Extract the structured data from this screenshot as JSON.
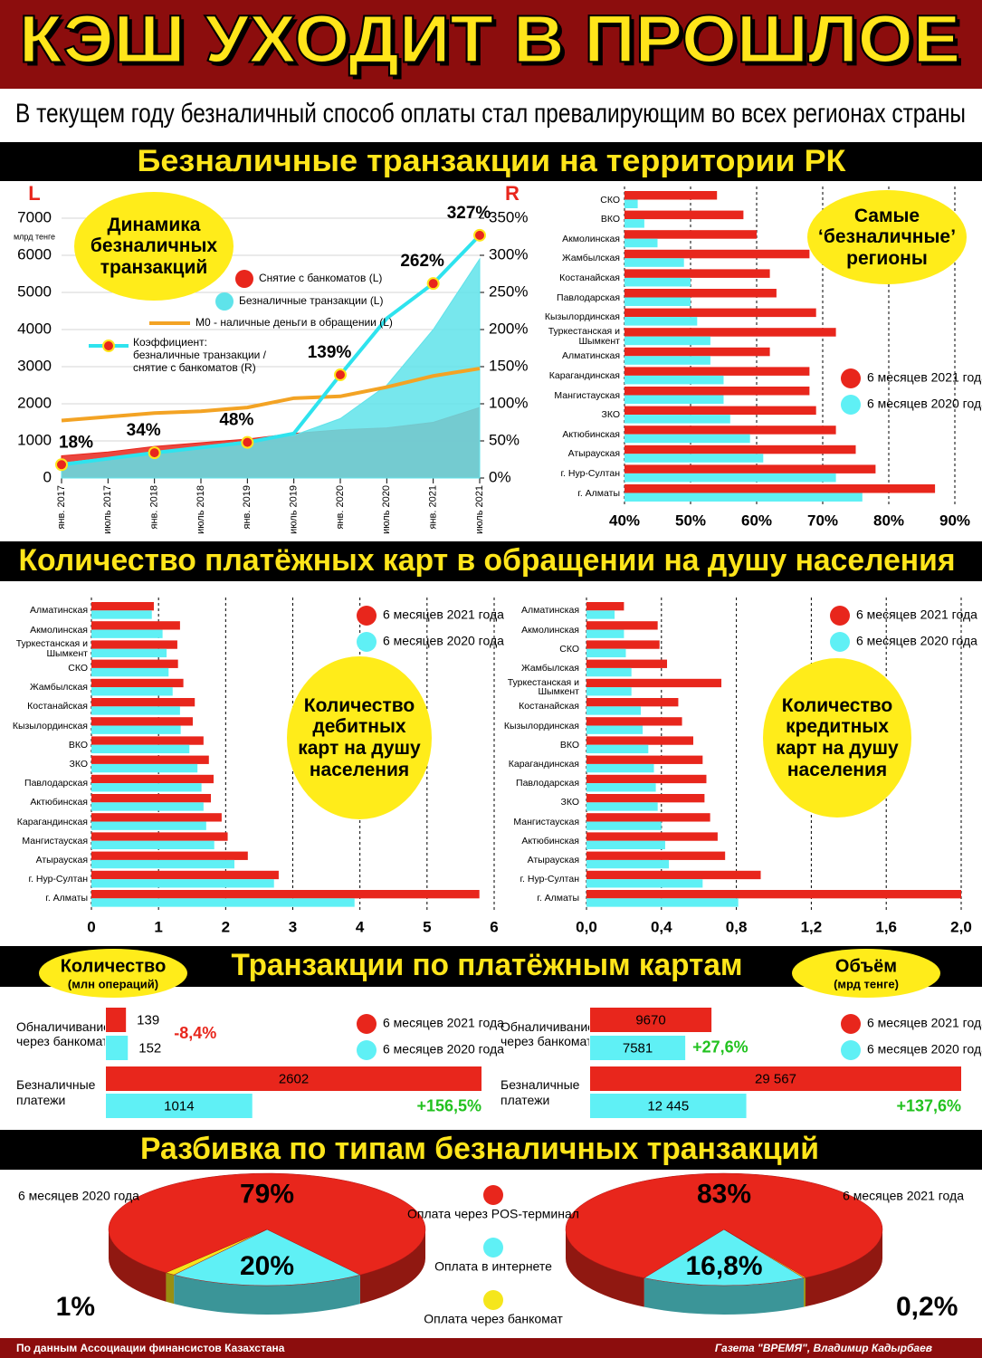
{
  "header": {
    "title": "КЭШ УХОДИТ В ПРОШЛОЕ",
    "subtitle": "В текущем году безналичный способ оплаты стал превалирующим во всех регионах страны"
  },
  "sections": [
    "Безналичные транзакции на территории РК",
    "Количество платёжных карт в обращении на душу населения",
    "Транзакции по платёжным картам",
    "Разбивка по типам безналичных транзакций"
  ],
  "chart_data": [
    {
      "type": "line",
      "title": "Динамика безналичных транзакций",
      "y_label": "L",
      "y_unit": "млрд тенге",
      "y2_label": "R",
      "x": [
        "янв. 2017",
        "июль 2017",
        "янв. 2018",
        "июль 2018",
        "янв. 2019",
        "июль 2019",
        "янв. 2020",
        "июль 2020",
        "янв. 2021",
        "июль 2021"
      ],
      "series": [
        {
          "name": "Снятие с банкоматов (L)",
          "kind": "area",
          "color": "#e8261c",
          "values": [
            600,
            700,
            850,
            950,
            1050,
            1200,
            1300,
            1350,
            1500,
            1900
          ]
        },
        {
          "name": "Безналичные транзакции (L)",
          "kind": "area",
          "color": "#5fe3ea",
          "values": [
            400,
            550,
            700,
            850,
            1000,
            1150,
            1600,
            2500,
            4000,
            5900
          ]
        },
        {
          "name": "М0 - наличные деньги в обращении (L)",
          "kind": "line",
          "color": "#f3a324",
          "values": [
            1550,
            1650,
            1750,
            1800,
            1900,
            2150,
            2200,
            2450,
            2750,
            2950
          ]
        },
        {
          "name": "Коэффициент: безналичные транзакции /снятие с банкоматов (R)",
          "kind": "line",
          "axis": "y2",
          "color": "#2ee3ee",
          "values": [
            18,
            26,
            34,
            41,
            48,
            60,
            139,
            215,
            262,
            327
          ],
          "value_labels": [
            "18%",
            null,
            "34%",
            null,
            "48%",
            null,
            "139%",
            null,
            "262%",
            "327%"
          ]
        }
      ],
      "ylim": [
        0,
        7000
      ],
      "yticks": [
        0,
        1000,
        2000,
        3000,
        4000,
        5000,
        6000,
        7000
      ],
      "y2lim": [
        0,
        350
      ],
      "y2ticks": [
        {
          "value": 0,
          "label": "0%"
        },
        {
          "value": 50,
          "label": "50%"
        },
        {
          "value": 100,
          "label": "100%"
        },
        {
          "value": 150,
          "label": "150%"
        },
        {
          "value": 200,
          "label": "200%"
        },
        {
          "value": 250,
          "label": "250%"
        },
        {
          "value": 300,
          "label": "300%"
        },
        {
          "value": 350,
          "label": "350%"
        }
      ],
      "grid": true
    },
    {
      "type": "barh",
      "title": "Самые “безналичные” регионы",
      "categories": [
        "СКО",
        "ВКО",
        "Акмолинская",
        "Жамбылская",
        "Костанайская",
        "Павлодарская",
        "Кызылординская",
        "Туркестанская и Шымкент",
        "Алматинская",
        "Карагандинская",
        "Мангистауская",
        "ЗКО",
        "Актюбинская",
        "Атырауская",
        "г. Нур-Султан",
        "г. Алматы"
      ],
      "series": [
        {
          "name": "6 месяцев 2021 года",
          "color": "#e8261c",
          "values": [
            54,
            58,
            60,
            68,
            62,
            63,
            69,
            72,
            62,
            68,
            68,
            69,
            72,
            75,
            78,
            87
          ]
        },
        {
          "name": "6 месяцев 2020 года",
          "color": "#5ff0f5",
          "values": [
            42,
            43,
            45,
            49,
            50,
            50,
            51,
            53,
            53,
            55,
            55,
            56,
            59,
            61,
            72,
            76
          ]
        }
      ],
      "xlim": [
        40,
        90
      ],
      "xticks": [
        {
          "value": 40,
          "label": "40%"
        },
        {
          "value": 50,
          "label": "50%"
        },
        {
          "value": 60,
          "label": "60%"
        },
        {
          "value": 70,
          "label": "70%"
        },
        {
          "value": 80,
          "label": "80%"
        },
        {
          "value": 90,
          "label": "90%"
        }
      ],
      "grid": true
    },
    {
      "type": "barh",
      "title": "Количество дебитных карт на душу населения",
      "categories": [
        "Алматинская",
        "Акмолинская",
        "Туркестанская и Шымкент",
        "СКО",
        "Жамбылская",
        "Костанайская",
        "Кызылординская",
        "ВКО",
        "ЗКО",
        "Павлодарская",
        "Актюбинская",
        "Карагандинская",
        "Мангистауская",
        "Атырауская",
        "г. Нур-Султан",
        "г. Алматы"
      ],
      "series": [
        {
          "name": "6 месяцев 2021 года",
          "color": "#e8261c",
          "values": [
            0.93,
            1.32,
            1.28,
            1.29,
            1.37,
            1.54,
            1.51,
            1.67,
            1.75,
            1.82,
            1.78,
            1.94,
            2.03,
            2.33,
            2.79,
            5.78
          ]
        },
        {
          "name": "6 месяцев 2020 года",
          "color": "#5ff0f5",
          "values": [
            0.9,
            1.06,
            1.12,
            1.15,
            1.21,
            1.32,
            1.33,
            1.46,
            1.58,
            1.64,
            1.67,
            1.71,
            1.83,
            2.13,
            2.72,
            3.92
          ]
        }
      ],
      "xlim": [
        0,
        6
      ],
      "xticks": [
        0,
        1,
        2,
        3,
        4,
        5,
        6
      ],
      "grid": true
    },
    {
      "type": "barh",
      "title": "Количество кредитных карт на душу населения",
      "categories": [
        "Алматинская",
        "Акмолинская",
        "СКО",
        "Жамбылская",
        "Туркестанская и Шымкент",
        "Костанайская",
        "Кызылординская",
        "ВКО",
        "Карагандинская",
        "Павлодарская",
        "ЗКО",
        "Мангистауская",
        "Актюбинская",
        "Атырауская",
        "г. Нур-Султан",
        "г. Алматы"
      ],
      "series": [
        {
          "name": "6 месяцев 2021 года",
          "color": "#e8261c",
          "values": [
            0.2,
            0.38,
            0.39,
            0.43,
            0.72,
            0.49,
            0.51,
            0.57,
            0.62,
            0.64,
            0.63,
            0.66,
            0.7,
            0.74,
            0.93,
            2.0
          ]
        },
        {
          "name": "6 месяцев 2020 года",
          "color": "#5ff0f5",
          "values": [
            0.15,
            0.2,
            0.21,
            0.24,
            0.24,
            0.29,
            0.3,
            0.33,
            0.36,
            0.37,
            0.38,
            0.4,
            0.42,
            0.44,
            0.62,
            0.81
          ]
        }
      ],
      "xlim": [
        0,
        2
      ],
      "xticks": [
        {
          "value": 0,
          "label": "0,0"
        },
        {
          "value": 0.4,
          "label": "0,4"
        },
        {
          "value": 0.8,
          "label": "0,8"
        },
        {
          "value": 1.2,
          "label": "1,2"
        },
        {
          "value": 1.6,
          "label": "1,6"
        },
        {
          "value": 2,
          "label": "2,0"
        }
      ],
      "grid": true
    },
    {
      "type": "barh_compare",
      "title": "Количество",
      "subtitle": "(млн операций)",
      "categories": [
        "Обналичивание через банкомат",
        "Безналичные платежи"
      ],
      "series": [
        {
          "name": "6 месяцев 2021 года",
          "color": "#e8261c",
          "values": [
            139,
            2602
          ]
        },
        {
          "name": "6 месяцев 2020 года",
          "color": "#5ff0f5",
          "values": [
            152,
            1014
          ]
        }
      ],
      "changes": [
        -8.4,
        156.5
      ],
      "change_labels": [
        "-8,4%",
        "+156,5%"
      ]
    },
    {
      "type": "barh_compare",
      "title": "Объём",
      "subtitle": "(мрд тенге)",
      "categories": [
        "Обналичивание через банкомат",
        "Безналичные платежи"
      ],
      "series": [
        {
          "name": "6 месяцев 2021 года",
          "color": "#e8261c",
          "values": [
            9670,
            29567
          ],
          "value_labels": [
            "9670",
            "29 567"
          ]
        },
        {
          "name": "6 месяцев 2020 года",
          "color": "#5ff0f5",
          "values": [
            7581,
            12445
          ],
          "value_labels": [
            "7581",
            "12 445"
          ]
        }
      ],
      "changes": [
        27.6,
        137.6
      ],
      "change_labels": [
        "+27,6%",
        "+137,6%"
      ]
    },
    {
      "type": "pie",
      "categories": [
        "Оплата через POS-терминал",
        "Оплата в интернете",
        "Оплата через банкомат"
      ],
      "colors": [
        "#e8261c",
        "#5ff0f5",
        "#f5e61c"
      ],
      "pies": [
        {
          "title": "6 месяцев 2020 года",
          "direction": 1,
          "values": [
            79,
            20,
            1
          ],
          "value_labels": [
            "79%",
            "20%",
            "1%"
          ]
        },
        {
          "title": "6 месяцев 2021 года",
          "direction": -1,
          "values": [
            83,
            16.8,
            0.2
          ],
          "value_labels": [
            "83%",
            "16,8%",
            "0,2%"
          ]
        }
      ]
    }
  ],
  "footer": {
    "source": "По данным Ассоциации финансистов Казахстана",
    "credit": "Газета \"ВРЕМЯ\", Владимир Кадырбаев"
  }
}
